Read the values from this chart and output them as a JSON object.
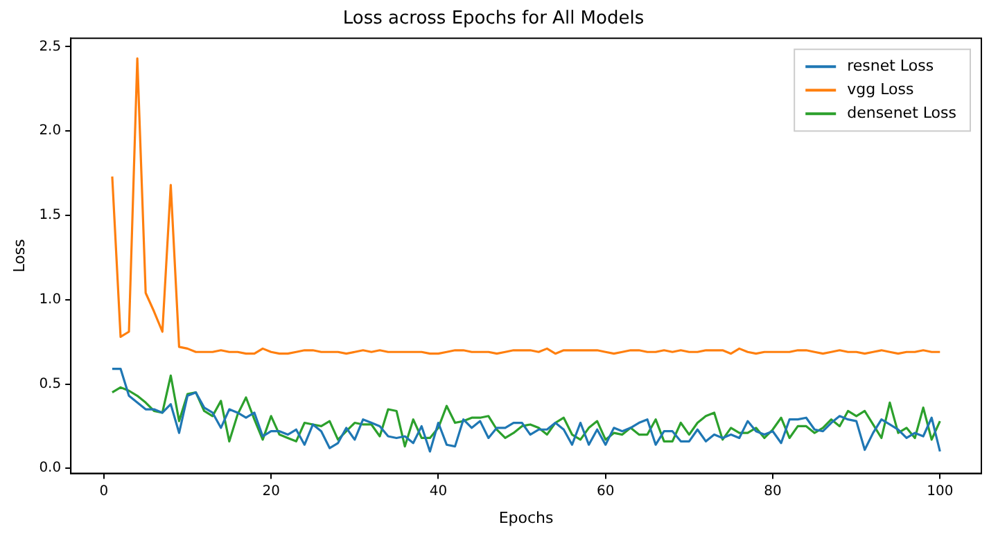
{
  "chart_data": {
    "type": "line",
    "title": "Loss across Epochs for All Models",
    "xlabel": "Epochs",
    "ylabel": "Loss",
    "x": [
      1,
      2,
      3,
      4,
      5,
      6,
      7,
      8,
      9,
      10,
      11,
      12,
      13,
      14,
      15,
      16,
      17,
      18,
      19,
      20,
      21,
      22,
      23,
      24,
      25,
      26,
      27,
      28,
      29,
      30,
      31,
      32,
      33,
      34,
      35,
      36,
      37,
      38,
      39,
      40,
      41,
      42,
      43,
      44,
      45,
      46,
      47,
      48,
      49,
      50,
      51,
      52,
      53,
      54,
      55,
      56,
      57,
      58,
      59,
      60,
      61,
      62,
      63,
      64,
      65,
      66,
      67,
      68,
      69,
      70,
      71,
      72,
      73,
      74,
      75,
      76,
      77,
      78,
      79,
      80,
      81,
      82,
      83,
      84,
      85,
      86,
      87,
      88,
      89,
      90,
      91,
      92,
      93,
      94,
      95,
      96,
      97,
      98,
      99,
      100
    ],
    "series": [
      {
        "name": "resnet Loss",
        "color": "#1f77b4",
        "values": [
          0.59,
          0.59,
          0.43,
          0.39,
          0.35,
          0.35,
          0.33,
          0.38,
          0.21,
          0.43,
          0.45,
          0.36,
          0.33,
          0.24,
          0.35,
          0.33,
          0.3,
          0.33,
          0.19,
          0.22,
          0.22,
          0.2,
          0.23,
          0.14,
          0.26,
          0.22,
          0.12,
          0.15,
          0.24,
          0.17,
          0.29,
          0.27,
          0.25,
          0.19,
          0.18,
          0.19,
          0.15,
          0.25,
          0.1,
          0.27,
          0.14,
          0.13,
          0.29,
          0.24,
          0.28,
          0.18,
          0.24,
          0.24,
          0.27,
          0.27,
          0.2,
          0.23,
          0.23,
          0.27,
          0.23,
          0.14,
          0.27,
          0.14,
          0.23,
          0.14,
          0.24,
          0.22,
          0.24,
          0.27,
          0.29,
          0.14,
          0.22,
          0.22,
          0.16,
          0.16,
          0.23,
          0.16,
          0.2,
          0.18,
          0.2,
          0.18,
          0.28,
          0.22,
          0.2,
          0.22,
          0.15,
          0.29,
          0.29,
          0.3,
          0.23,
          0.22,
          0.27,
          0.31,
          0.29,
          0.28,
          0.11,
          0.21,
          0.29,
          0.26,
          0.23,
          0.18,
          0.21,
          0.19,
          0.3,
          0.1
        ]
      },
      {
        "name": "vgg Loss",
        "color": "#ff7f0e",
        "values": [
          1.73,
          0.78,
          0.81,
          2.43,
          1.04,
          0.93,
          0.81,
          1.68,
          0.72,
          0.71,
          0.69,
          0.69,
          0.69,
          0.7,
          0.69,
          0.69,
          0.68,
          0.68,
          0.71,
          0.69,
          0.68,
          0.68,
          0.69,
          0.7,
          0.7,
          0.69,
          0.69,
          0.69,
          0.68,
          0.69,
          0.7,
          0.69,
          0.7,
          0.69,
          0.69,
          0.69,
          0.69,
          0.69,
          0.68,
          0.68,
          0.69,
          0.7,
          0.7,
          0.69,
          0.69,
          0.69,
          0.68,
          0.69,
          0.7,
          0.7,
          0.7,
          0.69,
          0.71,
          0.68,
          0.7,
          0.7,
          0.7,
          0.7,
          0.7,
          0.69,
          0.68,
          0.69,
          0.7,
          0.7,
          0.69,
          0.69,
          0.7,
          0.69,
          0.7,
          0.69,
          0.69,
          0.7,
          0.7,
          0.7,
          0.68,
          0.71,
          0.69,
          0.68,
          0.69,
          0.69,
          0.69,
          0.69,
          0.7,
          0.7,
          0.69,
          0.68,
          0.69,
          0.7,
          0.69,
          0.69,
          0.68,
          0.69,
          0.7,
          0.69,
          0.68,
          0.69,
          0.69,
          0.7,
          0.69,
          0.69
        ]
      },
      {
        "name": "densenet Loss",
        "color": "#2ca02c",
        "values": [
          0.45,
          0.48,
          0.46,
          0.43,
          0.39,
          0.34,
          0.33,
          0.55,
          0.28,
          0.44,
          0.45,
          0.34,
          0.31,
          0.4,
          0.16,
          0.32,
          0.42,
          0.29,
          0.17,
          0.31,
          0.2,
          0.18,
          0.16,
          0.27,
          0.26,
          0.25,
          0.28,
          0.17,
          0.22,
          0.27,
          0.26,
          0.26,
          0.19,
          0.35,
          0.34,
          0.13,
          0.29,
          0.18,
          0.18,
          0.24,
          0.37,
          0.27,
          0.28,
          0.3,
          0.3,
          0.31,
          0.23,
          0.18,
          0.21,
          0.25,
          0.26,
          0.24,
          0.2,
          0.27,
          0.3,
          0.2,
          0.17,
          0.24,
          0.28,
          0.17,
          0.21,
          0.2,
          0.24,
          0.2,
          0.2,
          0.29,
          0.16,
          0.16,
          0.27,
          0.2,
          0.27,
          0.31,
          0.33,
          0.17,
          0.24,
          0.21,
          0.21,
          0.24,
          0.18,
          0.23,
          0.3,
          0.18,
          0.25,
          0.25,
          0.21,
          0.24,
          0.29,
          0.25,
          0.34,
          0.31,
          0.34,
          0.26,
          0.18,
          0.39,
          0.21,
          0.24,
          0.18,
          0.36,
          0.17,
          0.28
        ]
      }
    ],
    "xlim": [
      -3.95,
      104.95
    ],
    "xticks": [
      0,
      20,
      40,
      60,
      80,
      100
    ],
    "ylim": [
      -0.03,
      2.55
    ],
    "yticks": [
      {
        "value": 0,
        "label": "0.0"
      },
      {
        "value": 0.5,
        "label": "0.5"
      },
      {
        "value": 1,
        "label": "1.0"
      },
      {
        "value": 1.5,
        "label": "1.5"
      },
      {
        "value": 2,
        "label": "2.0"
      },
      {
        "value": 2.5,
        "label": "2.5"
      }
    ],
    "legend": "top right",
    "marker": "none",
    "line_style": "solid"
  }
}
